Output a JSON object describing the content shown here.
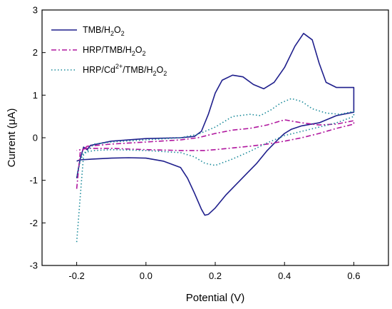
{
  "chart_data": {
    "type": "line",
    "xlabel": "Potential (V)",
    "ylabel": "Current (μA)",
    "xlim": [
      -0.3,
      0.7
    ],
    "ylim": [
      -3,
      3
    ],
    "x_ticks": [
      -0.2,
      0.0,
      0.2,
      0.4,
      0.6
    ],
    "x_tick_labels": [
      "-0.2",
      "0.0",
      "0.2",
      "0.4",
      "0.6"
    ],
    "y_ticks": [
      -3,
      -2,
      -1,
      0,
      1,
      2,
      3
    ],
    "y_tick_labels": [
      "-3",
      "-2",
      "-1",
      "0",
      "1",
      "2",
      "3"
    ],
    "grid": false,
    "legend_position": "top-left",
    "series": [
      {
        "legend": {
          "base": "TMB/H",
          "sub1": "2",
          "mid": "O",
          "sub2": "2"
        },
        "color": "#1f1f8c",
        "dash": "solid",
        "x": [
          -0.2,
          -0.19,
          -0.18,
          -0.17,
          -0.16,
          -0.1,
          0.0,
          0.1,
          0.14,
          0.16,
          0.18,
          0.2,
          0.22,
          0.25,
          0.28,
          0.31,
          0.34,
          0.37,
          0.4,
          0.43,
          0.455,
          0.48,
          0.5,
          0.52,
          0.55,
          0.6,
          0.6,
          0.55,
          0.5,
          0.45,
          0.42,
          0.4,
          0.38,
          0.35,
          0.32,
          0.29,
          0.26,
          0.23,
          0.2,
          0.18,
          0.17,
          0.16,
          0.14,
          0.12,
          0.1,
          0.05,
          0.0,
          -0.05,
          -0.1,
          -0.15,
          -0.19,
          -0.2
        ],
        "y": [
          -0.95,
          -0.5,
          -0.22,
          -0.28,
          -0.18,
          -0.08,
          -0.02,
          0.0,
          0.03,
          0.15,
          0.55,
          1.05,
          1.35,
          1.47,
          1.43,
          1.25,
          1.15,
          1.3,
          1.65,
          2.15,
          2.45,
          2.3,
          1.75,
          1.3,
          1.18,
          1.18,
          0.6,
          0.52,
          0.35,
          0.28,
          0.2,
          0.1,
          -0.05,
          -0.3,
          -0.6,
          -0.85,
          -1.1,
          -1.35,
          -1.65,
          -1.8,
          -1.82,
          -1.68,
          -1.3,
          -0.95,
          -0.7,
          -0.55,
          -0.48,
          -0.47,
          -0.48,
          -0.5,
          -0.52,
          -0.55
        ]
      },
      {
        "legend": {
          "base": "HRP/TMB/H",
          "sub1": "2",
          "mid": "O",
          "sub2": "2"
        },
        "color": "#b0169e",
        "dash": "dashdot",
        "x": [
          -0.2,
          -0.19,
          -0.17,
          -0.1,
          0.0,
          0.1,
          0.15,
          0.2,
          0.25,
          0.3,
          0.35,
          0.4,
          0.45,
          0.5,
          0.55,
          0.6,
          0.6,
          0.55,
          0.5,
          0.45,
          0.4,
          0.35,
          0.3,
          0.25,
          0.2,
          0.17,
          0.1,
          0.0,
          -0.1,
          -0.17,
          -0.2
        ],
        "y": [
          -1.2,
          -0.35,
          -0.2,
          -0.15,
          -0.1,
          -0.05,
          0.0,
          0.1,
          0.18,
          0.22,
          0.3,
          0.42,
          0.35,
          0.3,
          0.32,
          0.4,
          0.32,
          0.22,
          0.1,
          0.0,
          -0.08,
          -0.15,
          -0.2,
          -0.24,
          -0.28,
          -0.3,
          -0.3,
          -0.28,
          -0.25,
          -0.25,
          -0.3
        ]
      },
      {
        "legend": {
          "base": "HRP/Cd",
          "sup": "2+",
          "mid1": "/TMB/H",
          "sub1": "2",
          "mid2": "O",
          "sub2": "2"
        },
        "color": "#1a8a9a",
        "dash": "dotted",
        "x": [
          -0.2,
          -0.19,
          -0.18,
          -0.15,
          -0.1,
          0.0,
          0.1,
          0.15,
          0.2,
          0.25,
          0.3,
          0.33,
          0.36,
          0.39,
          0.42,
          0.45,
          0.48,
          0.52,
          0.56,
          0.6,
          0.6,
          0.55,
          0.5,
          0.45,
          0.4,
          0.35,
          0.3,
          0.25,
          0.2,
          0.17,
          0.14,
          0.1,
          0.0,
          -0.1,
          -0.15,
          -0.18,
          -0.19,
          -0.2
        ],
        "y": [
          -2.45,
          -1.4,
          -0.4,
          -0.15,
          -0.1,
          -0.05,
          0.0,
          0.08,
          0.25,
          0.5,
          0.55,
          0.52,
          0.65,
          0.82,
          0.92,
          0.85,
          0.68,
          0.58,
          0.55,
          0.62,
          0.5,
          0.35,
          0.25,
          0.15,
          0.05,
          -0.12,
          -0.32,
          -0.5,
          -0.65,
          -0.6,
          -0.45,
          -0.35,
          -0.3,
          -0.28,
          -0.3,
          -0.35,
          -0.55,
          -0.95
        ]
      }
    ]
  }
}
